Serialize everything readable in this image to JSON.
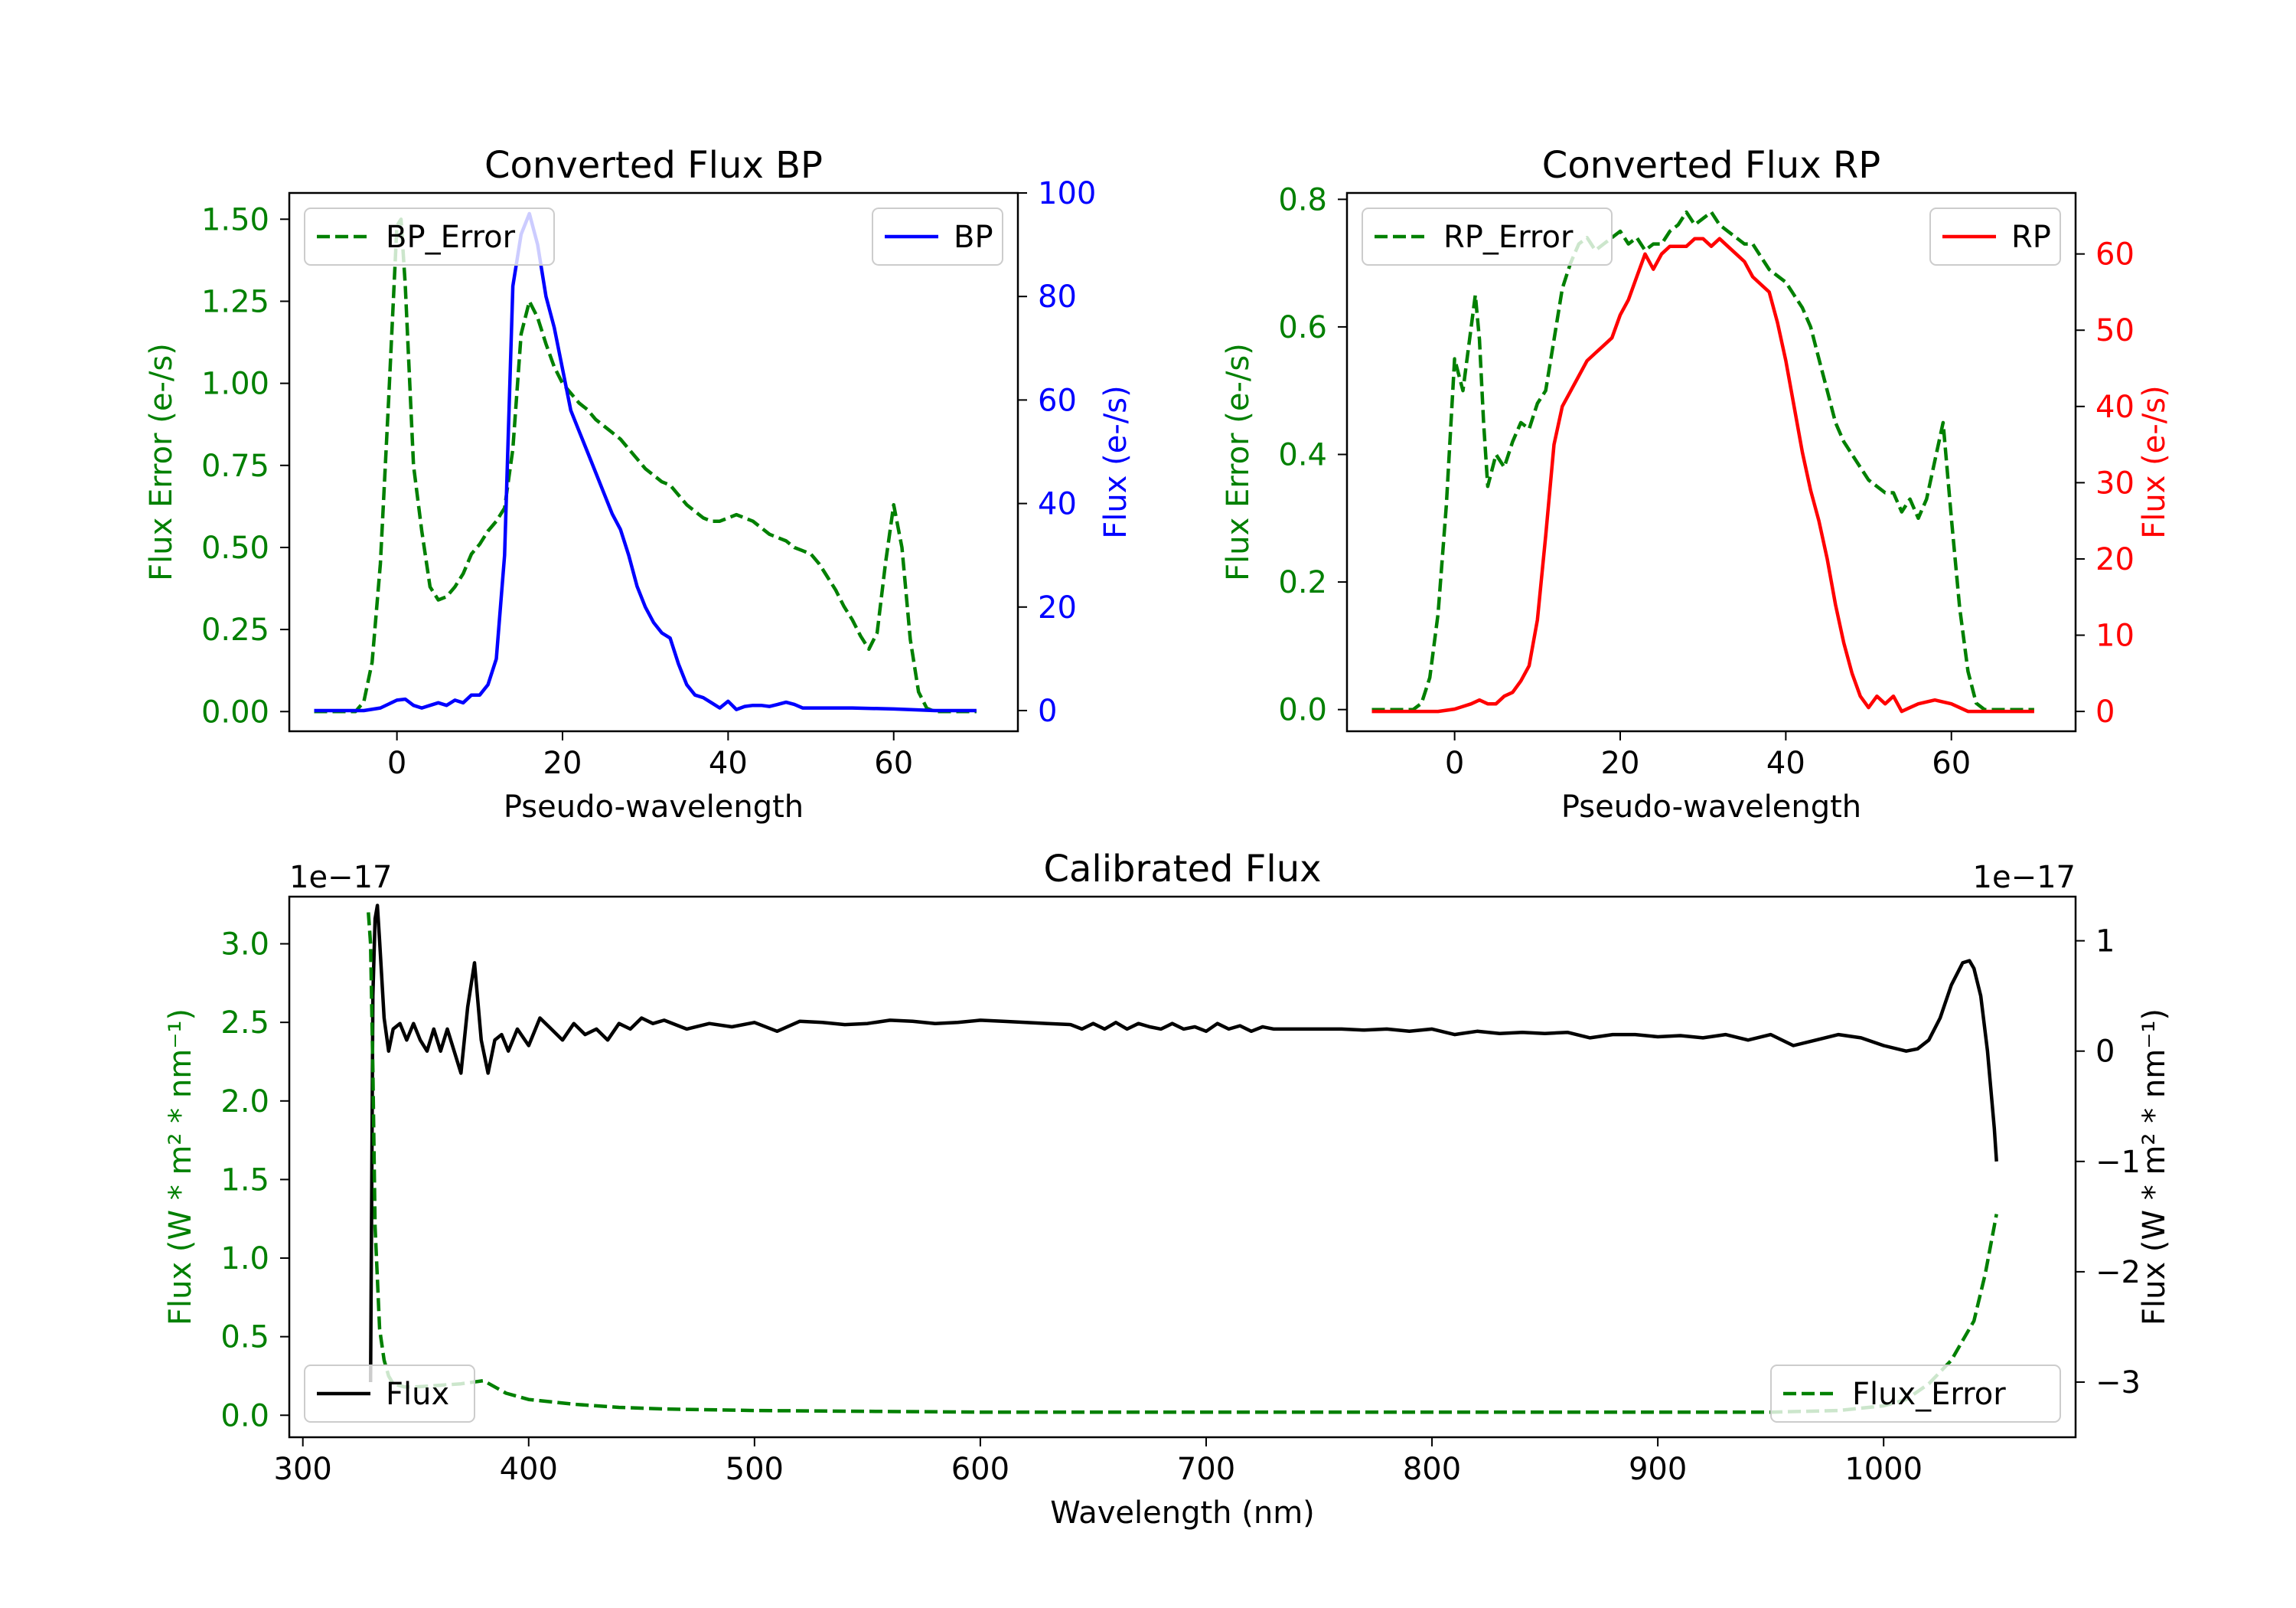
{
  "chart_data": [
    {
      "id": "bp",
      "type": "line",
      "title": "Converted Flux BP",
      "xlabel": "Pseudo-wavelength",
      "xlim": [
        -13,
        75
      ],
      "xticks": [
        0,
        20,
        40,
        60
      ],
      "left_axis": {
        "label": "Flux Error (e-/s)",
        "color": "#008000",
        "ylim": [
          -0.06,
          1.58
        ],
        "ticks": [
          0.0,
          0.25,
          0.5,
          0.75,
          1.0,
          1.25,
          1.5
        ],
        "tick_labels": [
          "0.00",
          "0.25",
          "0.50",
          "0.75",
          "1.00",
          "1.25",
          "1.50"
        ]
      },
      "right_axis": {
        "label": "Flux (e-/s)",
        "color": "#0000ff",
        "ylim": [
          -4,
          100
        ],
        "ticks": [
          0,
          20,
          40,
          60,
          80,
          100
        ],
        "tick_labels": [
          "0",
          "20",
          "40",
          "60",
          "80",
          "100"
        ]
      },
      "series": [
        {
          "name": "BP_Error",
          "axis": "left",
          "color": "#008000",
          "style": "dashed",
          "legend_loc": "upper left",
          "x": [
            -10,
            -5,
            -4,
            -3,
            -2,
            -1,
            0,
            0.5,
            1,
            2,
            3,
            4,
            5,
            6,
            7,
            8,
            9,
            10,
            11,
            12,
            13,
            14,
            15,
            16,
            17,
            18,
            19,
            20,
            21,
            22,
            23,
            24,
            25,
            26,
            27,
            28,
            29,
            30,
            31,
            32,
            33,
            34,
            35,
            36,
            37,
            38,
            39,
            40,
            41,
            42,
            43,
            44,
            45,
            46,
            47,
            48,
            49,
            50,
            51,
            52,
            53,
            54,
            55,
            56,
            57,
            58,
            59,
            60,
            61,
            62,
            63,
            64,
            65,
            70
          ],
          "y": [
            0,
            0,
            0.03,
            0.15,
            0.45,
            0.95,
            1.48,
            1.5,
            1.3,
            0.75,
            0.55,
            0.38,
            0.34,
            0.35,
            0.38,
            0.42,
            0.48,
            0.51,
            0.55,
            0.58,
            0.62,
            0.8,
            1.15,
            1.25,
            1.2,
            1.12,
            1.05,
            1.0,
            0.97,
            0.94,
            0.92,
            0.89,
            0.87,
            0.85,
            0.83,
            0.8,
            0.77,
            0.74,
            0.72,
            0.7,
            0.69,
            0.66,
            0.63,
            0.61,
            0.59,
            0.58,
            0.58,
            0.59,
            0.6,
            0.59,
            0.58,
            0.56,
            0.54,
            0.53,
            0.52,
            0.5,
            0.49,
            0.48,
            0.45,
            0.41,
            0.37,
            0.32,
            0.28,
            0.23,
            0.19,
            0.24,
            0.45,
            0.63,
            0.5,
            0.22,
            0.06,
            0.01,
            0,
            0
          ]
        },
        {
          "name": "BP",
          "axis": "right",
          "color": "#0000ff",
          "style": "solid",
          "legend_loc": "upper right",
          "x": [
            -10,
            -6,
            -4,
            -2,
            0,
            1,
            2,
            3,
            4,
            5,
            6,
            7,
            8,
            9,
            10,
            11,
            12,
            13,
            14,
            15,
            16,
            17,
            18,
            19,
            20,
            21,
            22,
            23,
            24,
            25,
            26,
            27,
            28,
            29,
            30,
            31,
            32,
            33,
            34,
            35,
            36,
            37,
            38,
            39,
            40,
            41,
            42,
            43,
            44,
            45,
            46,
            47,
            48,
            49,
            50,
            52,
            55,
            60,
            65,
            70
          ],
          "y": [
            0,
            0,
            0,
            0.5,
            2,
            2.2,
            1,
            0.5,
            1,
            1.5,
            1,
            2,
            1.5,
            3,
            3,
            5,
            10,
            30,
            82,
            92,
            96,
            90,
            80,
            74,
            66,
            58,
            54,
            50,
            46,
            42,
            38,
            35,
            30,
            24,
            20,
            17,
            15,
            14,
            9,
            5,
            3,
            2.5,
            1.5,
            0.5,
            1.8,
            0.2,
            0.8,
            1,
            1,
            0.8,
            1.2,
            1.6,
            1.2,
            0.5,
            0.5,
            0.5,
            0.5,
            0.3,
            0,
            0
          ]
        }
      ]
    },
    {
      "id": "rp",
      "type": "line",
      "title": "Converted Flux RP",
      "xlabel": "Pseudo-wavelength",
      "xlim": [
        -13,
        75
      ],
      "xticks": [
        0,
        20,
        40,
        60
      ],
      "left_axis": {
        "label": "Flux Error (e-/s)",
        "color": "#008000",
        "ylim": [
          -0.034,
          0.81
        ],
        "ticks": [
          0.0,
          0.2,
          0.4,
          0.6,
          0.8
        ],
        "tick_labels": [
          "0.0",
          "0.2",
          "0.4",
          "0.6",
          "0.8"
        ]
      },
      "right_axis": {
        "label": "Flux (e-/s)",
        "color": "#ff0000",
        "ylim": [
          -2.6,
          68
        ],
        "ticks": [
          0,
          10,
          20,
          30,
          40,
          50,
          60
        ],
        "tick_labels": [
          "0",
          "10",
          "20",
          "30",
          "40",
          "50",
          "60"
        ]
      },
      "series": [
        {
          "name": "RP_Error",
          "axis": "left",
          "color": "#008000",
          "style": "dashed",
          "legend_loc": "upper left",
          "x": [
            -10,
            -5,
            -4,
            -3,
            -2,
            -1,
            0,
            1,
            2,
            2.5,
            3,
            3.5,
            4,
            5,
            6,
            7,
            8,
            9,
            10,
            11,
            12,
            13,
            14,
            15,
            16,
            17,
            18,
            19,
            20,
            21,
            22,
            23,
            24,
            25,
            26,
            27,
            28,
            29,
            30,
            31,
            32,
            33,
            34,
            35,
            36,
            37,
            38,
            39,
            40,
            41,
            42,
            43,
            44,
            45,
            46,
            47,
            48,
            49,
            50,
            51,
            52,
            53,
            54,
            55,
            56,
            57,
            58,
            59,
            60,
            61,
            62,
            63,
            64,
            65,
            70
          ],
          "y": [
            0,
            0,
            0.01,
            0.05,
            0.15,
            0.32,
            0.55,
            0.5,
            0.6,
            0.65,
            0.58,
            0.45,
            0.35,
            0.4,
            0.38,
            0.42,
            0.45,
            0.44,
            0.48,
            0.5,
            0.58,
            0.66,
            0.7,
            0.73,
            0.74,
            0.72,
            0.73,
            0.74,
            0.75,
            0.73,
            0.74,
            0.72,
            0.73,
            0.73,
            0.75,
            0.76,
            0.78,
            0.76,
            0.77,
            0.78,
            0.76,
            0.75,
            0.74,
            0.73,
            0.73,
            0.71,
            0.69,
            0.68,
            0.67,
            0.65,
            0.63,
            0.6,
            0.55,
            0.5,
            0.45,
            0.42,
            0.4,
            0.38,
            0.36,
            0.35,
            0.34,
            0.34,
            0.31,
            0.33,
            0.3,
            0.33,
            0.39,
            0.45,
            0.3,
            0.16,
            0.06,
            0.01,
            0,
            0,
            0
          ]
        },
        {
          "name": "RP",
          "axis": "right",
          "color": "#ff0000",
          "style": "solid",
          "legend_loc": "upper right",
          "x": [
            -10,
            -4,
            -2,
            0,
            2,
            3,
            4,
            5,
            6,
            7,
            8,
            9,
            10,
            11,
            12,
            13,
            14,
            15,
            16,
            17,
            18,
            19,
            20,
            21,
            22,
            23,
            24,
            25,
            26,
            27,
            28,
            29,
            30,
            31,
            32,
            33,
            34,
            35,
            36,
            37,
            38,
            39,
            40,
            41,
            42,
            43,
            44,
            45,
            46,
            47,
            48,
            49,
            50,
            51,
            52,
            53,
            54,
            55,
            56,
            58,
            60,
            62,
            65,
            70
          ],
          "y": [
            0,
            0,
            0,
            0.3,
            1,
            1.5,
            1,
            1,
            2,
            2.5,
            4,
            6,
            12,
            23,
            35,
            40,
            42,
            44,
            46,
            47,
            48,
            49,
            52,
            54,
            57,
            60,
            58,
            60,
            61,
            61,
            61,
            62,
            62,
            61,
            62,
            61,
            60,
            59,
            57,
            56,
            55,
            51,
            46,
            40,
            34,
            29,
            25,
            20,
            14,
            9,
            5,
            2,
            0.5,
            2,
            1,
            2,
            0,
            0.5,
            1,
            1.5,
            1,
            0,
            0,
            0
          ]
        }
      ]
    },
    {
      "id": "cal",
      "type": "line",
      "title": "Calibrated Flux",
      "xlabel": "Wavelength (nm)",
      "xlim": [
        294,
        1085
      ],
      "xticks": [
        300,
        400,
        500,
        600,
        700,
        800,
        900,
        1000
      ],
      "left_axis": {
        "label": "Flux (W * m² * nm⁻¹)",
        "color": "#008000",
        "offset_text": "1e−17",
        "ylim": [
          -0.14,
          3.3
        ],
        "ticks": [
          0.0,
          0.5,
          1.0,
          1.5,
          2.0,
          2.5,
          3.0
        ],
        "tick_labels": [
          "0.0",
          "0.5",
          "1.0",
          "1.5",
          "2.0",
          "2.5",
          "3.0"
        ]
      },
      "right_axis": {
        "label": "Flux (W * m² * nm⁻¹)",
        "color": "#000000",
        "offset_text": "1e−17",
        "ylim": [
          -3.5,
          1.4
        ],
        "ticks": [
          -3,
          -2,
          -1,
          0,
          1
        ],
        "tick_labels": [
          "−3",
          "−2",
          "−1",
          "0",
          "1"
        ]
      },
      "series": [
        {
          "name": "Flux",
          "axis": "right",
          "color": "#000000",
          "style": "solid",
          "legend_loc": "lower left",
          "x": [
            330,
            331,
            332,
            333,
            334,
            336,
            338,
            340,
            343,
            346,
            349,
            352,
            355,
            358,
            361,
            364,
            367,
            370,
            373,
            376,
            379,
            382,
            385,
            388,
            391,
            395,
            400,
            405,
            410,
            415,
            420,
            425,
            430,
            435,
            440,
            445,
            450,
            455,
            460,
            470,
            480,
            490,
            500,
            510,
            520,
            530,
            540,
            550,
            560,
            570,
            580,
            590,
            600,
            610,
            620,
            630,
            640,
            645,
            650,
            655,
            660,
            665,
            670,
            675,
            680,
            685,
            690,
            695,
            700,
            705,
            710,
            715,
            720,
            725,
            730,
            740,
            750,
            760,
            770,
            780,
            790,
            800,
            810,
            820,
            830,
            840,
            850,
            860,
            870,
            880,
            890,
            900,
            910,
            920,
            930,
            940,
            950,
            960,
            970,
            980,
            990,
            1000,
            1010,
            1015,
            1020,
            1025,
            1030,
            1035,
            1038,
            1040,
            1043,
            1046,
            1049,
            1050
          ],
          "y": [
            -3.0,
            0.5,
            1.2,
            1.32,
            1.0,
            0.3,
            0.0,
            0.2,
            0.25,
            0.1,
            0.25,
            0.1,
            0.0,
            0.2,
            0.0,
            0.2,
            0.0,
            -0.2,
            0.4,
            0.8,
            0.1,
            -0.2,
            0.1,
            0.15,
            0.0,
            0.2,
            0.05,
            0.3,
            0.2,
            0.1,
            0.25,
            0.15,
            0.2,
            0.1,
            0.25,
            0.2,
            0.3,
            0.25,
            0.28,
            0.2,
            0.25,
            0.22,
            0.26,
            0.18,
            0.27,
            0.26,
            0.24,
            0.25,
            0.28,
            0.27,
            0.25,
            0.26,
            0.28,
            0.27,
            0.26,
            0.25,
            0.24,
            0.2,
            0.25,
            0.2,
            0.26,
            0.2,
            0.25,
            0.22,
            0.2,
            0.25,
            0.2,
            0.22,
            0.18,
            0.25,
            0.2,
            0.23,
            0.18,
            0.22,
            0.2,
            0.2,
            0.2,
            0.2,
            0.19,
            0.2,
            0.18,
            0.2,
            0.15,
            0.18,
            0.16,
            0.17,
            0.16,
            0.17,
            0.12,
            0.15,
            0.15,
            0.13,
            0.14,
            0.12,
            0.15,
            0.1,
            0.15,
            0.05,
            0.1,
            0.15,
            0.12,
            0.05,
            0.0,
            0.02,
            0.1,
            0.3,
            0.6,
            0.8,
            0.82,
            0.75,
            0.5,
            0.0,
            -0.7,
            -1.0
          ]
        },
        {
          "name": "Flux_Error",
          "axis": "left",
          "color": "#008000",
          "style": "dashed",
          "legend_loc": "lower right",
          "x": [
            329,
            330,
            331,
            332,
            334,
            336,
            338,
            340,
            345,
            350,
            360,
            370,
            380,
            390,
            400,
            420,
            440,
            460,
            500,
            600,
            700,
            800,
            900,
            950,
            980,
            1000,
            1010,
            1020,
            1030,
            1040,
            1045,
            1050
          ],
          "y": [
            3.2,
            3.0,
            2.2,
            1.2,
            0.55,
            0.35,
            0.25,
            0.2,
            0.18,
            0.18,
            0.19,
            0.2,
            0.22,
            0.14,
            0.1,
            0.07,
            0.05,
            0.04,
            0.03,
            0.02,
            0.02,
            0.02,
            0.02,
            0.02,
            0.03,
            0.06,
            0.1,
            0.2,
            0.35,
            0.6,
            0.9,
            1.28
          ]
        }
      ]
    }
  ]
}
